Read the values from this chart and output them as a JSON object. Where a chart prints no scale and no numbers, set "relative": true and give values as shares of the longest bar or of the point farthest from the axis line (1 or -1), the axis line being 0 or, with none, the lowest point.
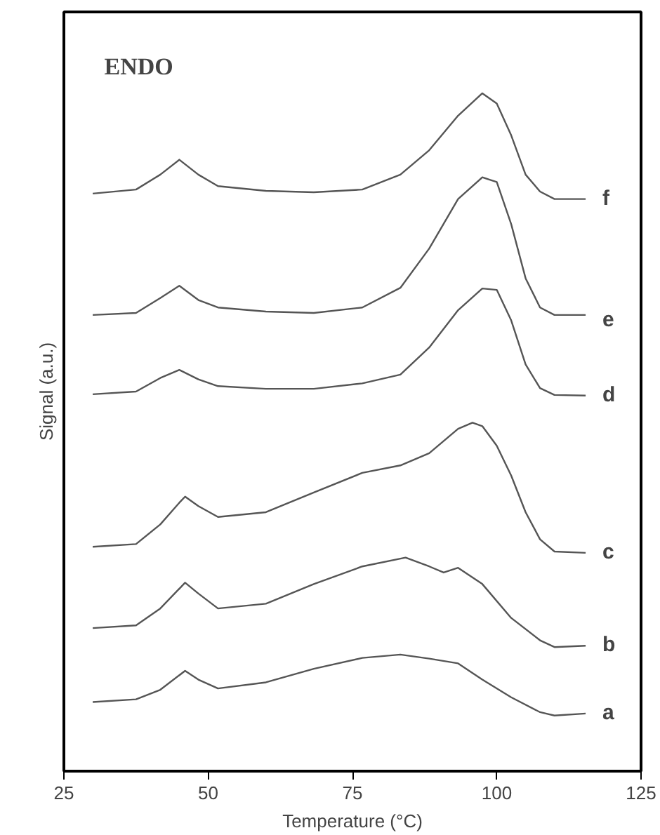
{
  "chart_data": {
    "type": "line",
    "relative": true,
    "xlabel": "Temperature (°C)",
    "ylabel": "Signal (a.u.)",
    "xlim": [
      25,
      125
    ],
    "xticks": [
      25,
      50,
      75,
      100,
      125
    ],
    "grid": false,
    "annotations": [
      "ENDO"
    ],
    "series": [
      {
        "name": "a",
        "color": "#555555",
        "x": [
          30,
          37.5,
          41.7,
          46,
          48.3,
          51.7,
          60,
          68.3,
          76.7,
          83.3,
          88.3,
          93.3,
          97.5,
          102.5,
          107.5,
          110,
          115.4
        ],
        "values": [
          0.102,
          0.106,
          0.12,
          0.148,
          0.135,
          0.122,
          0.131,
          0.151,
          0.167,
          0.172,
          0.166,
          0.159,
          0.135,
          0.109,
          0.087,
          0.082,
          0.085
        ]
      },
      {
        "name": "b",
        "color": "#555555",
        "x": [
          30,
          37.5,
          41.7,
          46,
          48.3,
          51.7,
          60,
          68.3,
          76.7,
          84.2,
          88.3,
          90.8,
          93.3,
          97.5,
          102.5,
          107.5,
          110,
          115.4
        ],
        "values": [
          0.211,
          0.215,
          0.24,
          0.278,
          0.262,
          0.24,
          0.247,
          0.276,
          0.302,
          0.315,
          0.302,
          0.293,
          0.3,
          0.276,
          0.226,
          0.193,
          0.183,
          0.185
        ]
      },
      {
        "name": "c",
        "color": "#555555",
        "x": [
          30,
          37.5,
          41.7,
          45,
          46,
          48.3,
          51.7,
          60,
          68.3,
          76.7,
          83.3,
          88.3,
          93.3,
          95.8,
          97.5,
          100,
          102.5,
          105,
          107.5,
          110,
          115.4
        ],
        "values": [
          0.331,
          0.335,
          0.364,
          0.396,
          0.405,
          0.391,
          0.375,
          0.382,
          0.411,
          0.44,
          0.451,
          0.469,
          0.505,
          0.514,
          0.509,
          0.48,
          0.436,
          0.382,
          0.342,
          0.324,
          0.322
        ]
      },
      {
        "name": "d",
        "color": "#555555",
        "x": [
          30,
          37.5,
          41.7,
          45,
          48.3,
          51.7,
          60,
          68.3,
          76.7,
          83.3,
          88.3,
          93.3,
          97.5,
          100,
          102.5,
          105,
          107.5,
          110,
          115.4
        ],
        "values": [
          0.556,
          0.56,
          0.58,
          0.592,
          0.578,
          0.568,
          0.564,
          0.564,
          0.572,
          0.585,
          0.625,
          0.68,
          0.712,
          0.71,
          0.665,
          0.6,
          0.565,
          0.555,
          0.554
        ]
      },
      {
        "name": "e",
        "color": "#555555",
        "x": [
          30,
          37.5,
          41.7,
          45,
          48.3,
          51.7,
          60,
          68.3,
          76.7,
          83.3,
          88.3,
          93.3,
          97.5,
          100,
          102.5,
          105,
          107.5,
          110,
          115.4
        ],
        "values": [
          0.673,
          0.676,
          0.698,
          0.716,
          0.695,
          0.684,
          0.678,
          0.676,
          0.684,
          0.713,
          0.771,
          0.844,
          0.876,
          0.869,
          0.807,
          0.727,
          0.684,
          0.673,
          0.673
        ]
      },
      {
        "name": "f",
        "color": "#555555",
        "x": [
          30,
          37.5,
          41.7,
          45,
          48.3,
          51.7,
          60,
          68.3,
          76.7,
          83.3,
          88.3,
          93.3,
          97.5,
          100,
          102.5,
          105,
          107.5,
          110,
          115.4
        ],
        "values": [
          0.852,
          0.858,
          0.88,
          0.902,
          0.88,
          0.863,
          0.856,
          0.854,
          0.858,
          0.88,
          0.916,
          0.967,
          1.0,
          0.985,
          0.938,
          0.88,
          0.855,
          0.844,
          0.844
        ]
      }
    ]
  }
}
